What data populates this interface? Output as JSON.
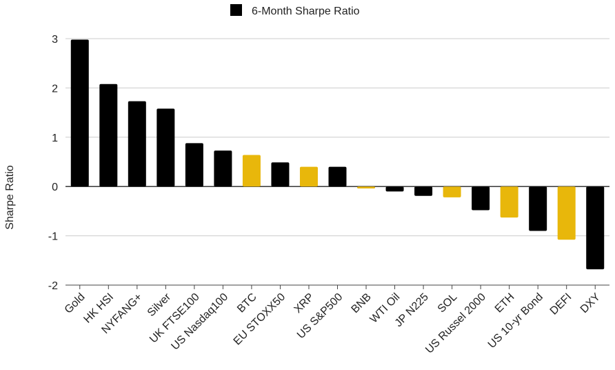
{
  "chart_data": {
    "type": "bar",
    "title": "",
    "xlabel": "",
    "ylabel": "Sharpe Ratio",
    "ylim": [
      -2,
      3
    ],
    "yticks": [
      3,
      2,
      1,
      0,
      -1,
      -2
    ],
    "grid": true,
    "legend_position": "top-center",
    "series": [
      {
        "name": "6-Month Sharpe Ratio",
        "color": "#000000",
        "values": [
          2.98,
          2.08,
          1.73,
          1.58,
          0.88,
          0.73,
          0.64,
          0.49,
          0.4,
          0.4,
          -0.04,
          -0.1,
          -0.19,
          -0.22,
          -0.48,
          -0.63,
          -0.9,
          -1.08,
          -1.68
        ]
      }
    ],
    "categories": [
      "Gold",
      "HK HSI",
      "NYFANG+",
      "Silver",
      "UK FTSE100",
      "US Nasdaq100",
      "BTC",
      "EU STOXX50",
      "XRP",
      "US S&P500",
      "BNB",
      "WTI Oil",
      "JP N225",
      "SOL",
      "US Russel 2000",
      "ETH",
      "US 10-yr Bond",
      "DEFI",
      "DXY"
    ],
    "highlight_color": "#E8B70B",
    "highlighted": [
      "BTC",
      "XRP",
      "BNB",
      "SOL",
      "ETH",
      "DEFI"
    ]
  }
}
